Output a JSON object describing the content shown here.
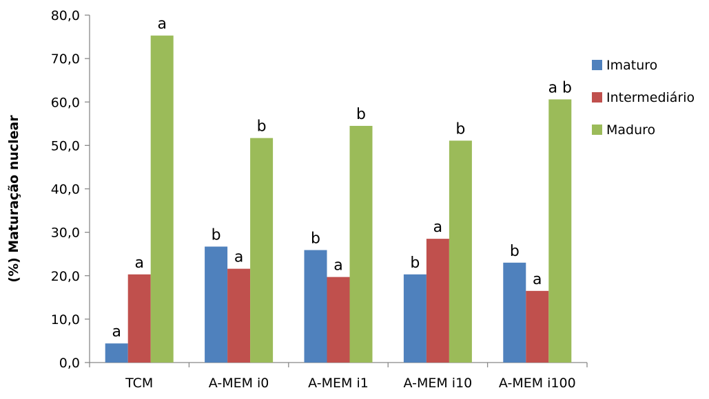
{
  "chart_data": {
    "type": "bar",
    "title": "",
    "xlabel": "",
    "ylabel": "(%) Maturação nuclear",
    "ylim": [
      0,
      80
    ],
    "yticks": [
      "0,0",
      "10,0",
      "20,0",
      "30,0",
      "40,0",
      "50,0",
      "60,0",
      "70,0",
      "80,0"
    ],
    "categories": [
      "TCM",
      "A-MEM i0",
      "A-MEM i1",
      "A-MEM i10",
      "A-MEM i100"
    ],
    "series": [
      {
        "name": "Imaturo",
        "color": "#4F81BD",
        "values": [
          4.4,
          26.7,
          25.9,
          20.3,
          23.0
        ],
        "labels": [
          "a",
          "b",
          "b",
          "b",
          "b"
        ]
      },
      {
        "name": "Intermediário",
        "color": "#C0504D",
        "values": [
          20.3,
          21.6,
          19.7,
          28.5,
          16.5
        ],
        "labels": [
          "a",
          "a",
          "a",
          "a",
          "a"
        ]
      },
      {
        "name": "Maduro",
        "color": "#9BBB59",
        "values": [
          75.3,
          51.7,
          54.5,
          51.1,
          60.6
        ],
        "labels": [
          "a",
          "b",
          "b",
          "b",
          "a b"
        ]
      }
    ],
    "grid": false,
    "legend": "right"
  }
}
